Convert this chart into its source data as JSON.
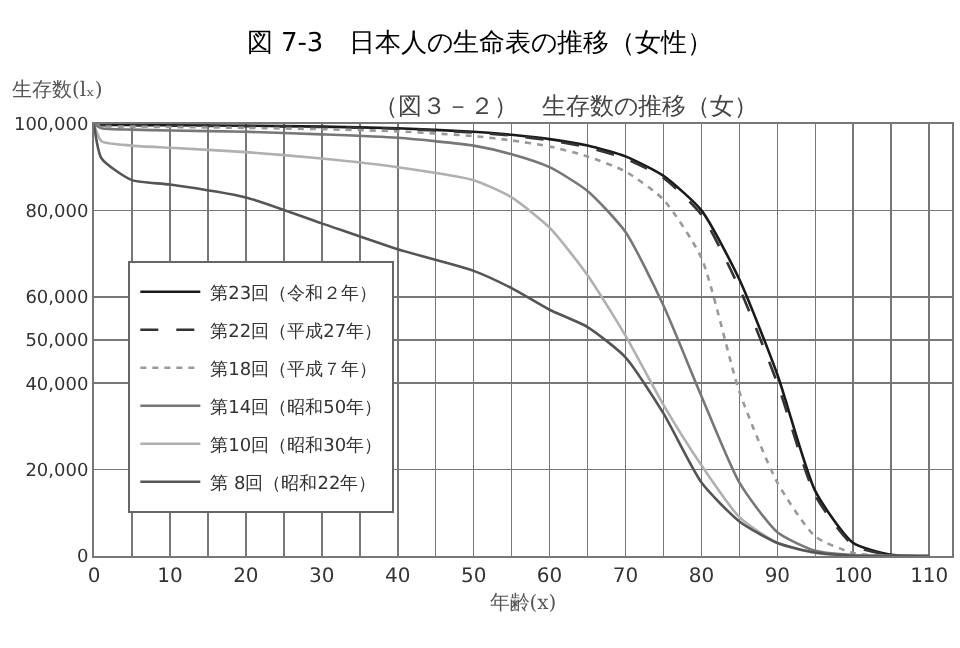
{
  "chart_data": {
    "type": "line",
    "title": "図 7-3　日本人の生命表の推移（女性）",
    "subtitle": "（図３－２）　生存数の推移（女）",
    "xlabel": "年齢(x)",
    "ylabel": "生存数(lₓ)",
    "x": [
      0,
      1,
      5,
      10,
      20,
      30,
      40,
      50,
      55,
      60,
      65,
      70,
      75,
      80,
      85,
      90,
      95,
      100,
      105,
      110
    ],
    "series": [
      {
        "name": "第23回（令和２年）",
        "color": "#1a1a1a",
        "line_style": "solid",
        "values": [
          100000,
          99800,
          99800,
          99700,
          99600,
          99400,
          99000,
          98200,
          97500,
          96500,
          95000,
          92500,
          88000,
          80000,
          64000,
          42000,
          15000,
          3000,
          300,
          0
        ]
      },
      {
        "name": "第22回（平成27年）",
        "color": "#333333",
        "line_style": "dashed",
        "values": [
          100000,
          99800,
          99700,
          99600,
          99500,
          99300,
          98900,
          98000,
          97300,
          96200,
          94600,
          92000,
          87500,
          79000,
          62000,
          40000,
          14000,
          2500,
          200,
          0
        ]
      },
      {
        "name": "第18回（平成７年）",
        "color": "#999999",
        "line_style": "dotted",
        "values": [
          100000,
          99500,
          99400,
          99300,
          99100,
          98800,
          98300,
          97200,
          96200,
          94800,
          92500,
          89000,
          82500,
          69000,
          38000,
          17000,
          4500,
          700,
          0,
          0
        ]
      },
      {
        "name": "第14回（昭和50年）",
        "color": "#777777",
        "line_style": "solid",
        "values": [
          100000,
          99000,
          98700,
          98500,
          98200,
          97600,
          96800,
          95000,
          93000,
          90000,
          84500,
          75000,
          58000,
          37000,
          17000,
          5500,
          1200,
          200,
          0,
          0
        ]
      },
      {
        "name": "第10回（昭和30年）",
        "color": "#b0b0b0",
        "line_style": "solid",
        "values": [
          100000,
          96000,
          95000,
          94500,
          93500,
          92000,
          90000,
          87000,
          83000,
          76000,
          65000,
          51000,
          35000,
          21000,
          9000,
          3000,
          700,
          100,
          0,
          0
        ]
      },
      {
        "name": "第 8回（昭和22年）",
        "color": "#555555",
        "line_style": "solid",
        "values": [
          100000,
          92000,
          87000,
          86000,
          83000,
          77000,
          71000,
          66000,
          62000,
          57000,
          53000,
          46000,
          33000,
          17000,
          8000,
          3000,
          800,
          100,
          0,
          0
        ]
      }
    ],
    "xlim": [
      0,
      113
    ],
    "xticks": [
      0,
      {
        "value": 5,
        "label": null
      },
      10,
      {
        "value": 15,
        "label": null
      },
      20,
      {
        "value": 25,
        "label": null
      },
      30,
      {
        "value": 35,
        "label": null
      },
      40,
      {
        "value": 45,
        "label": null
      },
      50,
      {
        "value": 55,
        "label": null
      },
      60,
      {
        "value": 65,
        "label": null
      },
      70,
      {
        "value": 75,
        "label": null
      },
      80,
      {
        "value": 85,
        "label": null
      },
      90,
      {
        "value": 95,
        "label": null
      },
      100,
      {
        "value": 105,
        "label": null
      },
      110
    ],
    "ylim": [
      0,
      100000
    ],
    "yticks": [
      0,
      {
        "value": 20000,
        "label": "20,000"
      },
      {
        "value": 40000,
        "label": "40,000"
      },
      {
        "value": 50000,
        "label": "50,000"
      },
      {
        "value": 60000,
        "label": "60,000"
      },
      {
        "value": 80000,
        "label": "80,000"
      },
      {
        "value": 100000,
        "label": "100,000"
      }
    ],
    "grid": true,
    "legend": "bottom left",
    "marker": "none"
  }
}
